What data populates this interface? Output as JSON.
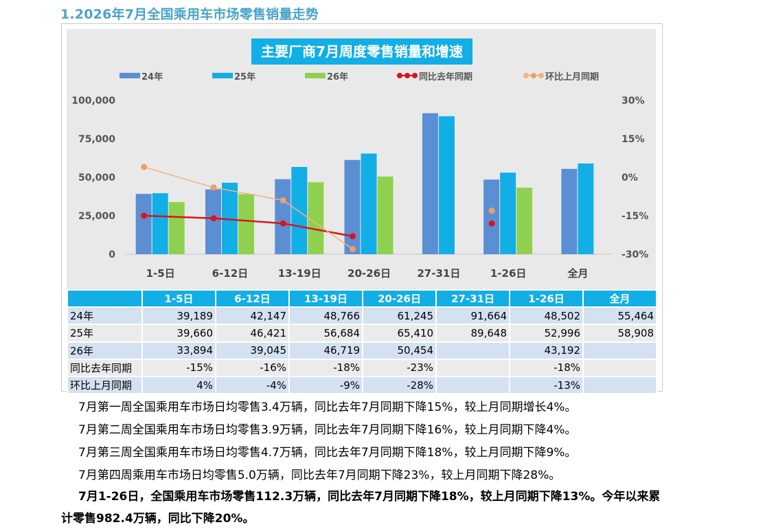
{
  "heading": "1.2026年7月全国乘用车市场零售销量走势",
  "chart_data": {
    "type": "bar",
    "title": "主要厂商7月周度零售销量和增速",
    "categories": [
      "1-5日",
      "6-12日",
      "13-19日",
      "20-26日",
      "27-31日",
      "1-26日",
      "全月"
    ],
    "series": [
      {
        "name": "24年",
        "color": "#5b8fd4",
        "values": [
          39189,
          42147,
          48766,
          61245,
          91664,
          48502,
          55464
        ]
      },
      {
        "name": "25年",
        "color": "#12aee6",
        "values": [
          39660,
          46421,
          56684,
          65410,
          89648,
          52996,
          58908
        ]
      },
      {
        "name": "26年",
        "color": "#8fd14f",
        "values": [
          33894,
          39045,
          46719,
          50454,
          null,
          43192,
          null
        ]
      }
    ],
    "line_series": [
      {
        "name": "同比去年同期",
        "color": "#d9141c",
        "values": [
          -15,
          -16,
          -18,
          -23,
          null,
          -18,
          null
        ]
      },
      {
        "name": "环比上月同期",
        "color": "#f4b183",
        "marker_color": "#f0a062",
        "values": [
          4,
          -4,
          -9,
          -28,
          null,
          -13,
          null
        ]
      }
    ],
    "connected_points": 4,
    "y_left": {
      "min": 0,
      "max": 100000,
      "ticks": [
        "0",
        "25,000",
        "50,000",
        "75,000",
        "100,000"
      ]
    },
    "y_right": {
      "min": -30,
      "max": 30,
      "ticks": [
        "-30%",
        "-15%",
        "0%",
        "15%",
        "30%"
      ]
    },
    "legend_position": "top",
    "grid": false
  },
  "table": {
    "headers": [
      "",
      "1-5日",
      "6-12日",
      "13-19日",
      "20-26日",
      "27-31日",
      "1-26日",
      "全月"
    ],
    "rows": [
      [
        "24年",
        "39,189",
        "42,147",
        "48,766",
        "61,245",
        "91,664",
        "48,502",
        "55,464"
      ],
      [
        "25年",
        "39,660",
        "46,421",
        "56,684",
        "65,410",
        "89,648",
        "52,996",
        "58,908"
      ],
      [
        "26年",
        "33,894",
        "39,045",
        "46,719",
        "50,454",
        "",
        "43,192",
        ""
      ],
      [
        "同比去年同期",
        "-15%",
        "-16%",
        "-18%",
        "-23%",
        "",
        "-18%",
        ""
      ],
      [
        "环比上月同期",
        "4%",
        "-4%",
        "-9%",
        "-28%",
        "",
        "-13%",
        ""
      ]
    ]
  },
  "paragraphs": [
    "7月第一周全国乘用车市场日均零售3.4万辆，同比去年7月同期下降15%，较上月同期增长4%。",
    "7月第二周全国乘用车市场日均零售3.9万辆，同比去年7月同期下降16%，较上月同期下降4%。",
    "7月第三周全国乘用车市场日均零售4.7万辆，同比去年7月同期下降18%，较上月同期下降9%。",
    "7月第四周乘用车市场日均零售5.0万辆，同比去年7月同期下降23%，较上月同期下降28%。",
    "7月1-26日，全国乘用车市场零售112.3万辆，同比去年7月同期下降18%，较上月同期下降13%。今年以来累",
    "计零售982.4万辆，同比下降20%。"
  ]
}
